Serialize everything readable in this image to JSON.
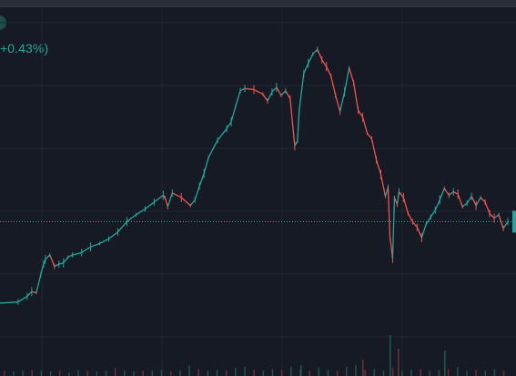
{
  "header": {
    "change_text": "+0.43%)"
  },
  "colors": {
    "background": "#161a25",
    "grid": "#232733",
    "up": "#26a69a",
    "down": "#ef5350",
    "price_line": "#26a69a"
  },
  "chart_data": {
    "type": "line",
    "title": "",
    "xlabel": "",
    "ylabel": "",
    "series": [
      {
        "x": [
          0,
          20,
          30,
          35,
          40,
          45,
          48,
          50,
          55,
          60,
          65,
          70,
          75,
          80,
          90,
          100,
          110,
          120,
          130,
          140,
          150,
          160,
          170,
          180,
          182,
          185,
          190,
          200,
          210,
          215,
          220,
          225,
          230,
          240,
          250,
          255,
          260,
          265,
          270,
          280,
          290,
          295,
          300,
          305,
          310,
          315,
          320,
          325,
          328,
          330,
          335,
          340,
          345,
          350,
          355,
          360,
          365,
          370,
          375,
          380,
          385,
          390,
          395,
          400,
          405,
          410,
          415,
          420,
          425,
          428,
          430,
          433,
          435,
          438,
          440,
          445,
          450,
          455,
          460,
          465,
          470,
          475,
          480,
          485,
          490,
          495,
          500,
          505,
          510,
          515,
          520,
          525,
          530,
          535,
          540,
          545,
          550,
          555,
          560
        ],
        "y": [
          0.4,
          0.5,
          1.0,
          1.4,
          1.3,
          2.9,
          3.8,
          4.2,
          4.6,
          3.6,
          3.8,
          3.9,
          4.4,
          4.6,
          4.8,
          5.3,
          5.6,
          6.0,
          6.6,
          7.5,
          8.1,
          8.6,
          9.2,
          9.8,
          9.6,
          8.8,
          10.0,
          9.6,
          8.9,
          9.4,
          10.6,
          11.7,
          13.1,
          14.6,
          15.6,
          16.2,
          17.6,
          18.9,
          19.1,
          19.0,
          18.6,
          18.0,
          18.8,
          19.2,
          18.5,
          18.9,
          18.2,
          14.1,
          14.5,
          17.2,
          20.4,
          21.3,
          22.1,
          22.5,
          21.6,
          21.0,
          20.2,
          18.5,
          17.1,
          18.8,
          20.9,
          19.6,
          17.2,
          16.6,
          15.2,
          14.7,
          12.9,
          11.6,
          9.7,
          10.5,
          6.2,
          4.3,
          9.6,
          9.0,
          10.1,
          9.6,
          8.2,
          7.5,
          7.0,
          6.1,
          7.3,
          7.9,
          8.5,
          9.4,
          10.4,
          9.8,
          10.1,
          9.9,
          8.8,
          9.1,
          9.7,
          8.9,
          9.6,
          9.2,
          8.2,
          7.8,
          8.1,
          6.9,
          7.5
        ]
      }
    ],
    "volume": [
      0.3,
      0.25,
      0.3,
      0.35,
      0.3,
      0.25,
      0.3,
      0.2,
      0.35,
      0.3,
      0.25,
      0.3,
      0.45,
      0.3,
      0.25,
      0.3,
      0.3,
      0.35,
      0.25,
      0.3,
      0.6,
      0.4,
      0.3,
      0.35,
      0.3,
      0.45,
      0.5,
      0.35,
      0.3,
      0.4,
      0.35,
      0.5,
      0.4,
      0.3,
      0.45,
      0.35,
      0.3,
      0.5,
      0.6,
      0.35,
      0.4,
      0.3,
      0.45,
      0.3,
      0.35,
      0.4,
      0.3,
      0.35,
      0.4,
      0.5,
      0.3,
      0.35,
      0.3,
      0.4,
      0.3
    ],
    "current_price_level": 7.5,
    "grid": true
  }
}
